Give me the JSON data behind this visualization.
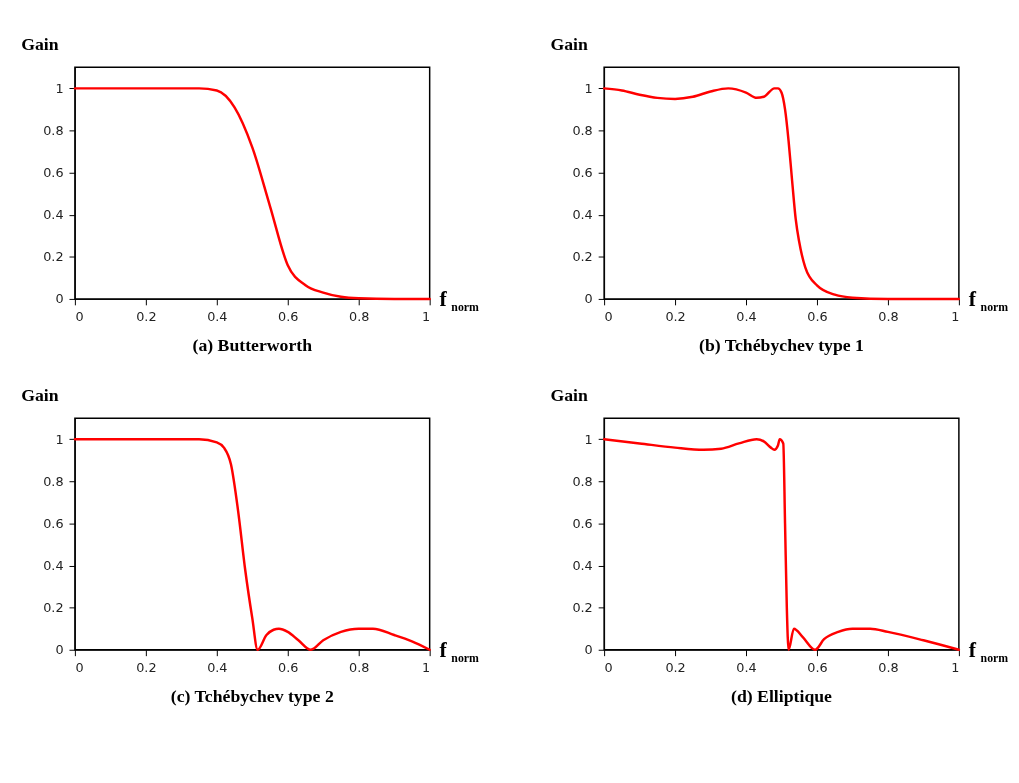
{
  "chart_data": [
    {
      "type": "line",
      "title": "(a) Butterworth",
      "xlabel": "f$_{norm}$",
      "ylabel": "Gain",
      "xlim": [
        0,
        1
      ],
      "ylim": [
        0,
        1.1
      ],
      "xticks": [
        0,
        0.2,
        0.4,
        0.6,
        0.8,
        1
      ],
      "yticks": [
        0,
        0.2,
        0.4,
        0.6,
        0.8,
        1
      ],
      "x": [
        0,
        0.1,
        0.2,
        0.3,
        0.35,
        0.4,
        0.45,
        0.5,
        0.55,
        0.6,
        0.65,
        0.7,
        0.75,
        0.8,
        0.9,
        1
      ],
      "series": [
        {
          "color": "#ff0000",
          "values": [
            1,
            1,
            1,
            1,
            1,
            0.99,
            0.91,
            0.72,
            0.44,
            0.16,
            0.065,
            0.03,
            0.01,
            0.003,
            0,
            0
          ]
        }
      ]
    },
    {
      "type": "line",
      "title": "(b) Tchébychev type 1",
      "xlabel": "f$_{norm}$",
      "ylabel": "Gain",
      "xlim": [
        0,
        1
      ],
      "ylim": [
        0,
        1.1
      ],
      "xticks": [
        0,
        0.2,
        0.4,
        0.6,
        0.8,
        1
      ],
      "yticks": [
        0,
        0.2,
        0.4,
        0.6,
        0.8,
        1
      ],
      "x": [
        0,
        0.05,
        0.1,
        0.15,
        0.2,
        0.25,
        0.3,
        0.35,
        0.4,
        0.43,
        0.45,
        0.48,
        0.49,
        0.5,
        0.51,
        0.52,
        0.53,
        0.54,
        0.55,
        0.567,
        0.6,
        0.65,
        0.7,
        0.8,
        1
      ],
      "series": [
        {
          "color": "#ff0000",
          "values": [
            1,
            0.99,
            0.97,
            0.955,
            0.95,
            0.96,
            0.985,
            1,
            0.98,
            0.955,
            0.96,
            1,
            1,
            0.98,
            0.9,
            0.75,
            0.56,
            0.38,
            0.27,
            0.15,
            0.064,
            0.02,
            0.006,
            0,
            0
          ]
        }
      ]
    },
    {
      "type": "line",
      "title": "(c) Tchébychev type 2",
      "xlabel": "f$_{norm}$",
      "ylabel": "Gain",
      "xlim": [
        0,
        1
      ],
      "ylim": [
        0,
        1.1
      ],
      "xticks": [
        0,
        0.2,
        0.4,
        0.6,
        0.8,
        1
      ],
      "yticks": [
        0,
        0.2,
        0.4,
        0.6,
        0.8,
        1
      ],
      "x": [
        0,
        0.1,
        0.2,
        0.3,
        0.35,
        0.4,
        0.42,
        0.44,
        0.46,
        0.48,
        0.5,
        0.515,
        0.54,
        0.56,
        0.575,
        0.6,
        0.63,
        0.665,
        0.7,
        0.75,
        0.8,
        0.84,
        0.9,
        0.95,
        1
      ],
      "series": [
        {
          "color": "#ff0000",
          "values": [
            1,
            1,
            1,
            1,
            1,
            0.985,
            0.96,
            0.88,
            0.66,
            0.38,
            0.15,
            0,
            0.07,
            0.095,
            0.1,
            0.085,
            0.045,
            0,
            0.045,
            0.085,
            0.1,
            0.1,
            0.07,
            0.04,
            0
          ]
        }
      ]
    },
    {
      "type": "line",
      "title": "(d) Elliptique",
      "xlabel": "f$_{norm}$",
      "ylabel": "Gain",
      "xlim": [
        0,
        1
      ],
      "ylim": [
        0,
        1.1
      ],
      "xticks": [
        0,
        0.2,
        0.4,
        0.6,
        0.8,
        1
      ],
      "yticks": [
        0,
        0.2,
        0.4,
        0.6,
        0.8,
        1
      ],
      "x": [
        0,
        0.1,
        0.2,
        0.28,
        0.33,
        0.38,
        0.43,
        0.45,
        0.47,
        0.48,
        0.49,
        0.495,
        0.505,
        0.51,
        0.515,
        0.52,
        0.535,
        0.56,
        0.595,
        0.62,
        0.66,
        0.7,
        0.75,
        0.8,
        0.9,
        1
      ],
      "series": [
        {
          "color": "#ff0000",
          "values": [
            1,
            0.98,
            0.96,
            0.95,
            0.955,
            0.98,
            1,
            0.99,
            0.96,
            0.95,
            0.97,
            1,
            0.98,
            0.6,
            0.2,
            0,
            0.1,
            0.06,
            0,
            0.05,
            0.085,
            0.1,
            0.1,
            0.085,
            0.045,
            0
          ]
        }
      ]
    }
  ]
}
